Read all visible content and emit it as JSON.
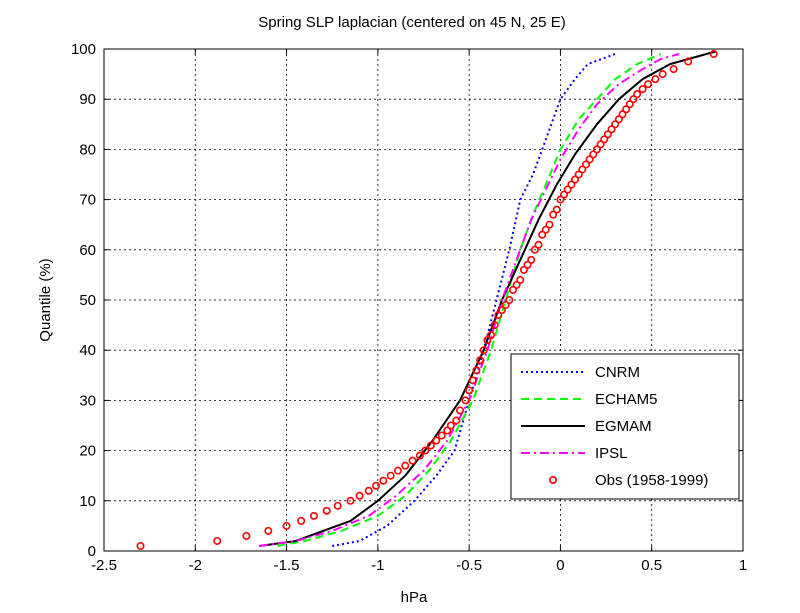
{
  "chart_data": {
    "type": "line",
    "title": "Spring SLP laplacian (centered on 45 N, 25 E)",
    "xlabel": "hPa",
    "ylabel": "Quantile (%)",
    "xlim": [
      -2.5,
      1
    ],
    "ylim": [
      0,
      100
    ],
    "xticks": [
      -2.5,
      -2,
      -1.5,
      -1,
      -0.5,
      0,
      0.5,
      1
    ],
    "xtick_labels": [
      "-2.5",
      "-2",
      "-1.5",
      "-1",
      "-0.5",
      "0",
      "0.5",
      "1"
    ],
    "yticks": [
      0,
      10,
      20,
      30,
      40,
      50,
      60,
      70,
      80,
      90,
      100
    ],
    "ytick_labels": [
      "0",
      "10",
      "20",
      "30",
      "40",
      "50",
      "60",
      "70",
      "80",
      "90",
      "100"
    ],
    "grid": true,
    "legend_position": "bottom-right",
    "series": [
      {
        "name": "CNRM",
        "color": "#0000ff",
        "style": "dotted",
        "x": [
          -1.25,
          -1.1,
          -0.95,
          -0.8,
          -0.68,
          -0.58,
          -0.5,
          -0.42,
          -0.35,
          -0.28,
          -0.22,
          -0.15,
          -0.1,
          -0.05,
          0,
          0.08,
          0.15,
          0.3
        ],
        "y": [
          1,
          2,
          5,
          10,
          15,
          20,
          30,
          40,
          50,
          60,
          70,
          75,
          80,
          85,
          90,
          94,
          97,
          99
        ]
      },
      {
        "name": "ECHAM5",
        "color": "#00ff00",
        "style": "dashed",
        "x": [
          -1.55,
          -1.4,
          -1.2,
          -1.0,
          -0.85,
          -0.72,
          -0.6,
          -0.48,
          -0.38,
          -0.3,
          -0.22,
          -0.15,
          -0.08,
          0,
          0.1,
          0.2,
          0.3,
          0.42,
          0.55
        ],
        "y": [
          1,
          2,
          4,
          7,
          11,
          16,
          22,
          30,
          40,
          50,
          60,
          67,
          73,
          80,
          86,
          90,
          94,
          97,
          99
        ]
      },
      {
        "name": "EGMAM",
        "color": "#000000",
        "style": "solid",
        "x": [
          -1.65,
          -1.45,
          -1.3,
          -1.15,
          -1.0,
          -0.85,
          -0.7,
          -0.55,
          -0.42,
          -0.32,
          -0.22,
          -0.12,
          -0.02,
          0.08,
          0.2,
          0.32,
          0.45,
          0.6,
          0.75,
          0.85
        ],
        "y": [
          1,
          2,
          4,
          6,
          10,
          15,
          22,
          30,
          40,
          50,
          58,
          66,
          73,
          79,
          85,
          90,
          94,
          97,
          98.5,
          99.5
        ]
      },
      {
        "name": "IPSL",
        "color": "#ff00ff",
        "style": "dashdot",
        "x": [
          -1.65,
          -1.45,
          -1.25,
          -1.05,
          -0.9,
          -0.75,
          -0.62,
          -0.5,
          -0.4,
          -0.32,
          -0.24,
          -0.16,
          -0.08,
          0,
          0.1,
          0.2,
          0.32,
          0.45,
          0.55,
          0.65
        ],
        "y": [
          1,
          2,
          4,
          7,
          11,
          16,
          22,
          30,
          40,
          50,
          58,
          66,
          72,
          78,
          84,
          89,
          93,
          96,
          98,
          99
        ]
      },
      {
        "name": "Obs (1958-1999)",
        "color": "#ff0000",
        "style": "markers",
        "x": [
          -2.3,
          -1.88,
          -1.72,
          -1.6,
          -1.5,
          -1.42,
          -1.35,
          -1.28,
          -1.22,
          -1.15,
          -1.1,
          -1.05,
          -1.01,
          -0.97,
          -0.93,
          -0.89,
          -0.85,
          -0.81,
          -0.77,
          -0.74,
          -0.71,
          -0.68,
          -0.65,
          -0.62,
          -0.6,
          -0.57,
          -0.55,
          -0.52,
          -0.5,
          -0.48,
          -0.46,
          -0.44,
          -0.42,
          -0.4,
          -0.38,
          -0.36,
          -0.34,
          -0.32,
          -0.3,
          -0.28,
          -0.26,
          -0.24,
          -0.22,
          -0.2,
          -0.18,
          -0.16,
          -0.14,
          -0.12,
          -0.1,
          -0.08,
          -0.06,
          -0.04,
          -0.02,
          0,
          0.02,
          0.04,
          0.06,
          0.08,
          0.1,
          0.12,
          0.14,
          0.16,
          0.18,
          0.2,
          0.22,
          0.24,
          0.26,
          0.28,
          0.3,
          0.32,
          0.34,
          0.36,
          0.38,
          0.4,
          0.42,
          0.45,
          0.48,
          0.52,
          0.56,
          0.62,
          0.7,
          0.84
        ],
        "y": [
          1,
          2,
          3,
          4,
          5,
          6,
          7,
          8,
          9,
          10,
          11,
          12,
          13,
          14,
          15,
          16,
          17,
          18,
          19,
          20,
          21,
          22,
          23,
          24,
          25,
          26,
          28,
          30,
          32,
          34,
          36,
          38,
          40,
          42,
          43,
          45,
          47,
          48,
          49,
          50,
          52,
          53,
          54,
          56,
          57,
          58,
          60,
          61,
          63,
          64,
          65,
          67,
          68,
          70,
          71,
          72,
          73,
          74,
          75,
          76,
          77,
          78,
          79,
          80,
          81,
          82,
          83,
          84,
          85,
          86,
          87,
          88,
          89,
          90,
          91,
          92,
          93,
          94,
          95,
          96,
          97.5,
          99
        ]
      }
    ]
  }
}
